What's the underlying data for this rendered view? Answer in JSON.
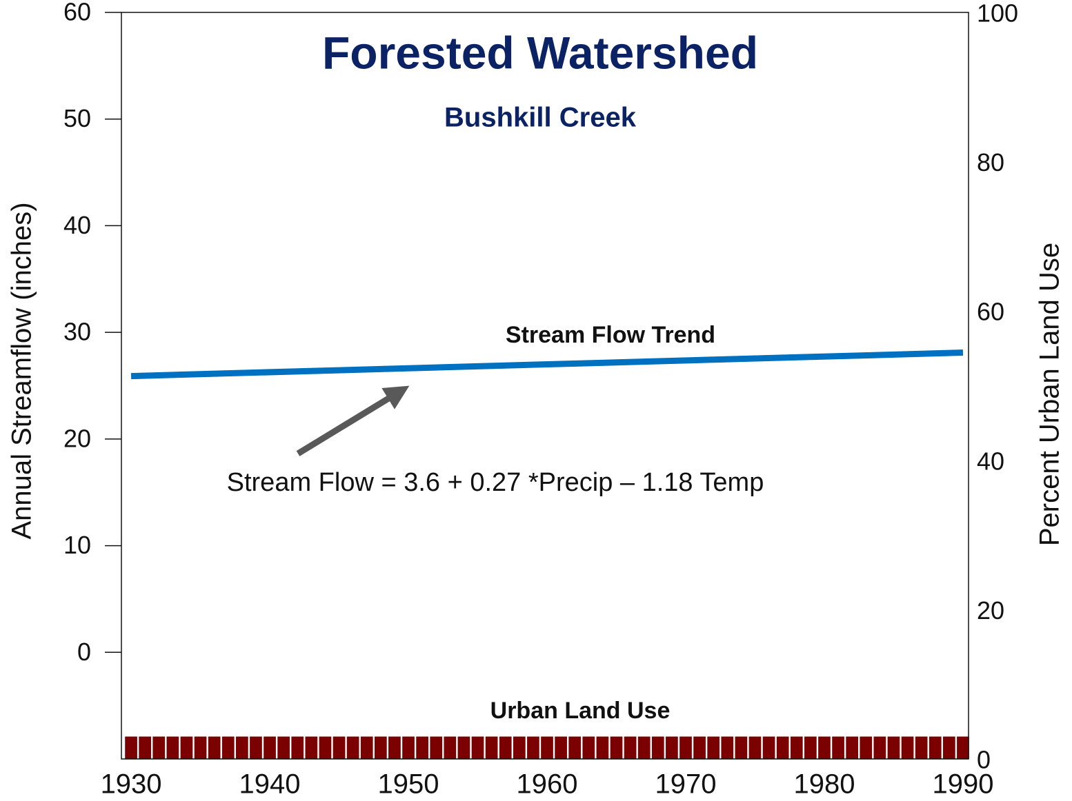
{
  "chart_data": {
    "type": "combo",
    "title": "Forested Watershed",
    "subtitle": "Bushkill Creek",
    "ylabel": "Annual Streamflow (inches)",
    "y2label": "Percent Urban Land Use",
    "annotation": "Stream Flow = 3.6 + 0.27 *Precip – 1.18 Temp",
    "xlim": [
      1929.3,
      1990.4
    ],
    "xticks": [
      1930,
      1940,
      1950,
      1960,
      1970,
      1980,
      1990
    ],
    "ylim": [
      -10,
      60
    ],
    "yticks": [
      0,
      10,
      20,
      30,
      40,
      50,
      60
    ],
    "y2lim": [
      0,
      100
    ],
    "y2ticks": [
      0,
      20,
      40,
      60,
      80,
      100
    ],
    "grid": false,
    "series": [
      {
        "name": "Stream Flow Trend",
        "type": "line",
        "color": "#0070c0",
        "x": [
          1930,
          1990
        ],
        "values": [
          25.9,
          28.1
        ]
      },
      {
        "name": "Urban Land Use",
        "type": "bar",
        "axis": "y2",
        "color": "#7b0000",
        "x": [
          1930,
          1931,
          1932,
          1933,
          1934,
          1935,
          1936,
          1937,
          1938,
          1939,
          1940,
          1941,
          1942,
          1943,
          1944,
          1945,
          1946,
          1947,
          1948,
          1949,
          1950,
          1951,
          1952,
          1953,
          1954,
          1955,
          1956,
          1957,
          1958,
          1959,
          1960,
          1961,
          1962,
          1963,
          1964,
          1965,
          1966,
          1967,
          1968,
          1969,
          1970,
          1971,
          1972,
          1973,
          1974,
          1975,
          1976,
          1977,
          1978,
          1979,
          1980,
          1981,
          1982,
          1983,
          1984,
          1985,
          1986,
          1987,
          1988,
          1989,
          1990
        ],
        "values": [
          3,
          3,
          3,
          3,
          3,
          3,
          3,
          3,
          3,
          3,
          3,
          3,
          3,
          3,
          3,
          3,
          3,
          3,
          3,
          3,
          3,
          3,
          3,
          3,
          3,
          3,
          3,
          3,
          3,
          3,
          3,
          3,
          3,
          3,
          3,
          3,
          3,
          3,
          3,
          3,
          3,
          3,
          3,
          3,
          3,
          3,
          3,
          3,
          3,
          3,
          3,
          3,
          3,
          3,
          3,
          3,
          3,
          3,
          3,
          3,
          3
        ]
      }
    ]
  }
}
